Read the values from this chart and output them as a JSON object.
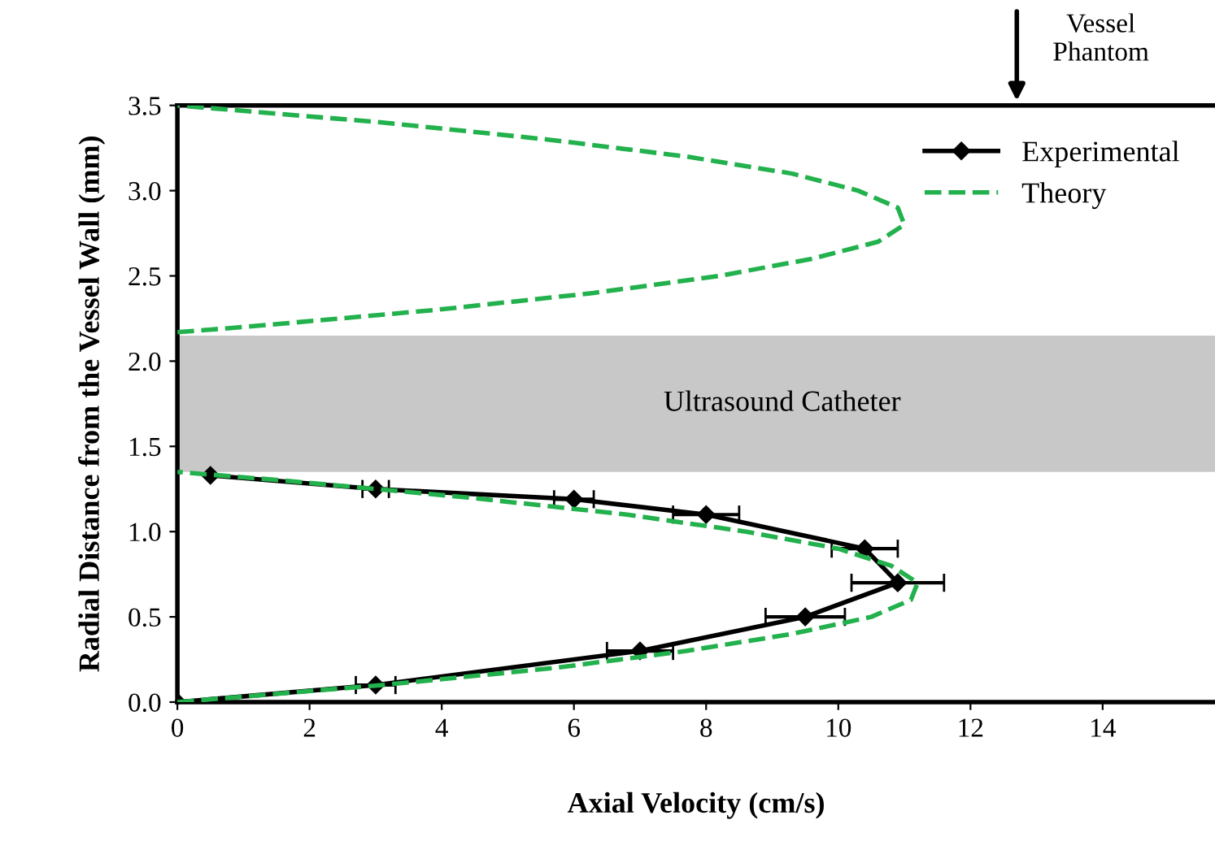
{
  "chart_data": {
    "type": "line",
    "xlabel": "Axial Velocity (cm/s)",
    "ylabel": "Radial Distance from the Vessel Wall (mm)",
    "xlim": [
      0,
      15.7
    ],
    "xticks": [
      0,
      2,
      4,
      6,
      8,
      10,
      12,
      14
    ],
    "ylim": [
      0,
      3.5
    ],
    "yticks": [
      {
        "value": 0,
        "label": "0.0"
      },
      0.5,
      {
        "value": 1,
        "label": "1.0"
      },
      1.5,
      {
        "value": 2,
        "label": "2.0"
      },
      2.5,
      {
        "value": 3,
        "label": "3.0"
      },
      3.5
    ],
    "series": [
      {
        "name": "Experimental",
        "color": "#000000",
        "marker": "diamond",
        "line_style": "solid",
        "x": [
          0.5,
          3.0,
          6.0,
          8.0,
          10.4,
          10.9,
          9.5,
          7.0,
          3.0,
          0
        ],
        "values": [
          1.33,
          1.25,
          1.19,
          1.1,
          0.9,
          0.7,
          0.5,
          0.3,
          0.1,
          0
        ],
        "xerrors": [
          null,
          0.2,
          0.3,
          0.5,
          0.5,
          0.7,
          0.6,
          0.5,
          0.3,
          null
        ]
      },
      {
        "name": "Theory",
        "color": "#22b14c",
        "marker": "none",
        "line_style": "dashed",
        "x": [
          0,
          3.1,
          5.7,
          7.7,
          9.3,
          10.5,
          11.1,
          11.2,
          10.8,
          10.0,
          8.6,
          6.8,
          4.4,
          1.6,
          0,
          null,
          0,
          1.0,
          3.9,
          6.3,
          8.2,
          9.6,
          10.6,
          11.0,
          10.9,
          10.3,
          9.3,
          7.7,
          5.6,
          3.1,
          0
        ],
        "values": [
          0,
          0.1,
          0.2,
          0.3,
          0.4,
          0.5,
          0.6,
          0.7,
          0.8,
          0.9,
          1.0,
          1.1,
          1.2,
          1.3,
          1.35,
          null,
          2.17,
          2.2,
          2.3,
          2.4,
          2.5,
          2.6,
          2.7,
          2.8,
          2.9,
          3.0,
          3.1,
          3.2,
          3.3,
          3.4,
          3.5
        ]
      }
    ],
    "bands": [
      {
        "axis": "y",
        "from": 1.35,
        "to": 2.15,
        "label": "Ultrasound Catheter",
        "color": "#c8c8c8"
      }
    ],
    "annotations": [
      "Vessel\nPhantom"
    ],
    "legend": "top right",
    "grid": false
  }
}
